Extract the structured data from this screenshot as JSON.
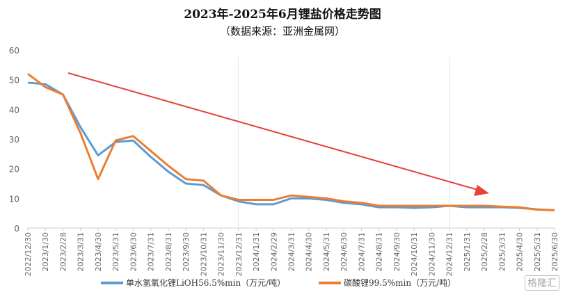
{
  "chart_data": {
    "type": "line",
    "title": "2023年-2025年6月锂盐价格走势图",
    "subtitle": "（数据来源：亚洲金属网）",
    "categories": [
      "2022/12/30",
      "2023/1/30",
      "2023/2/28",
      "2023/3/31",
      "2023/4/30",
      "2023/5/31",
      "2023/6/30",
      "2023/7/31",
      "2023/8/31",
      "2023/9/30",
      "2023/10/31",
      "2023/11/30",
      "2023/12/31",
      "2024/1/31",
      "2024/2/29",
      "2024/3/31",
      "2024/4/30",
      "2024/5/31",
      "2024/6/30",
      "2024/7/31",
      "2024/8/31",
      "2024/9/30",
      "2024/10/31",
      "2024/11/30",
      "2024/12/31",
      "2025/1/31",
      "2025/2/28",
      "2025/3/31",
      "2025/4/30",
      "2025/5/31",
      "2025/6/30"
    ],
    "series": [
      {
        "name": "单水氢氧化锂LiOH56.5%min（万元/吨）",
        "color": "#5b9bd5",
        "values": [
          49,
          48.5,
          45,
          34,
          24.5,
          29,
          29.5,
          24,
          19,
          15,
          14.5,
          11,
          9,
          8,
          8,
          10,
          10,
          9.5,
          8.5,
          8,
          7,
          7,
          6.8,
          7,
          7.5,
          7,
          7,
          7,
          6.8,
          6.3,
          6
        ]
      },
      {
        "name": "碳酸锂99.5%min（万元/吨）",
        "color": "#ed7d31",
        "values": [
          52,
          47.5,
          45,
          32,
          16.5,
          29.5,
          31,
          26,
          21,
          16.5,
          16,
          11,
          9.5,
          9.5,
          9.5,
          11,
          10.5,
          10,
          9,
          8.5,
          7.5,
          7.5,
          7.5,
          7.5,
          7.5,
          7.5,
          7.5,
          7.2,
          7,
          6.2,
          6
        ]
      }
    ],
    "yticks": [
      0,
      10,
      20,
      30,
      40,
      50,
      60
    ],
    "ylim": [
      0,
      60
    ],
    "annotation": {
      "type": "trend-arrow",
      "color": "#e8413c"
    },
    "highlight_gridlines": [
      "2023/12/31",
      "2024/12/31"
    ]
  },
  "watermark": "格隆汇"
}
